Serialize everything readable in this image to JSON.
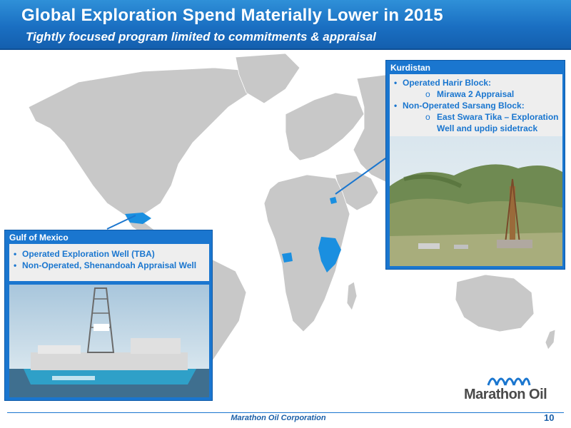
{
  "header": {
    "title": "Global Exploration Spend Materially Lower in 2015",
    "subtitle": "Tightly focused program limited to commitments & appraisal"
  },
  "colors": {
    "accent": "#1a76cf",
    "land": "#c8c8c8",
    "highlight": "#1a8fe0"
  },
  "kurdistan": {
    "title": "Kurdistan",
    "items": [
      {
        "type": "bullet",
        "text": "Operated Harir Block:"
      },
      {
        "type": "sub",
        "text": "Mirawa 2 Appraisal"
      },
      {
        "type": "bullet",
        "text": "Non-Operated Sarsang Block:"
      },
      {
        "type": "sub",
        "text": "East Swara Tika – Exploration"
      },
      {
        "type": "subcont",
        "text": "Well and updip sidetrack"
      }
    ]
  },
  "gulf": {
    "title": "Gulf of Mexico",
    "items": [
      {
        "type": "bullet",
        "text": "Operated Exploration Well (TBA)"
      },
      {
        "type": "bullet",
        "text": "Non-Operated, Shenandoah Appraisal Well"
      }
    ]
  },
  "logo": {
    "name": "Marathon Oil"
  },
  "footer": {
    "company": "Marathon Oil Corporation",
    "page": "10"
  },
  "sub_marker": "o"
}
